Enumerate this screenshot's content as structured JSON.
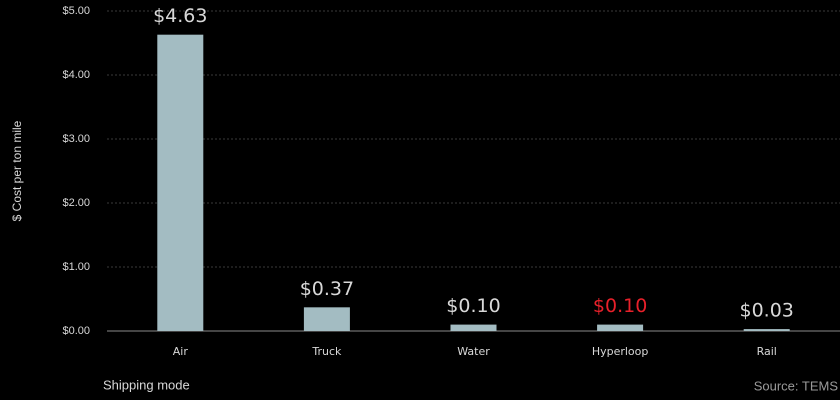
{
  "chart_data": {
    "type": "bar",
    "categories": [
      "Air",
      "Truck",
      "Water",
      "Hyperloop",
      "Rail"
    ],
    "values": [
      4.63,
      0.37,
      0.1,
      0.1,
      0.03
    ],
    "value_labels": [
      "$4.63",
      "$0.37",
      "$0.10",
      "$0.10",
      "$0.03"
    ],
    "value_label_colors": [
      "#d8d8d8",
      "#d8d8d8",
      "#d8d8d8",
      "#e8202a",
      "#d8d8d8"
    ],
    "color": "#a3bcc2",
    "ylabel": "$ Cost per ton mile",
    "xlabel": "Shipping mode",
    "source": "Source: TEMS",
    "ylim": [
      0,
      5
    ],
    "yticks": [
      {
        "value": 0,
        "label": "$0.00"
      },
      {
        "value": 1,
        "label": "$1.00"
      },
      {
        "value": 2,
        "label": "$2.00"
      },
      {
        "value": 3,
        "label": "$3.00"
      },
      {
        "value": 4,
        "label": "$4.00"
      },
      {
        "value": 5,
        "label": "$5.00"
      }
    ],
    "grid": true
  }
}
